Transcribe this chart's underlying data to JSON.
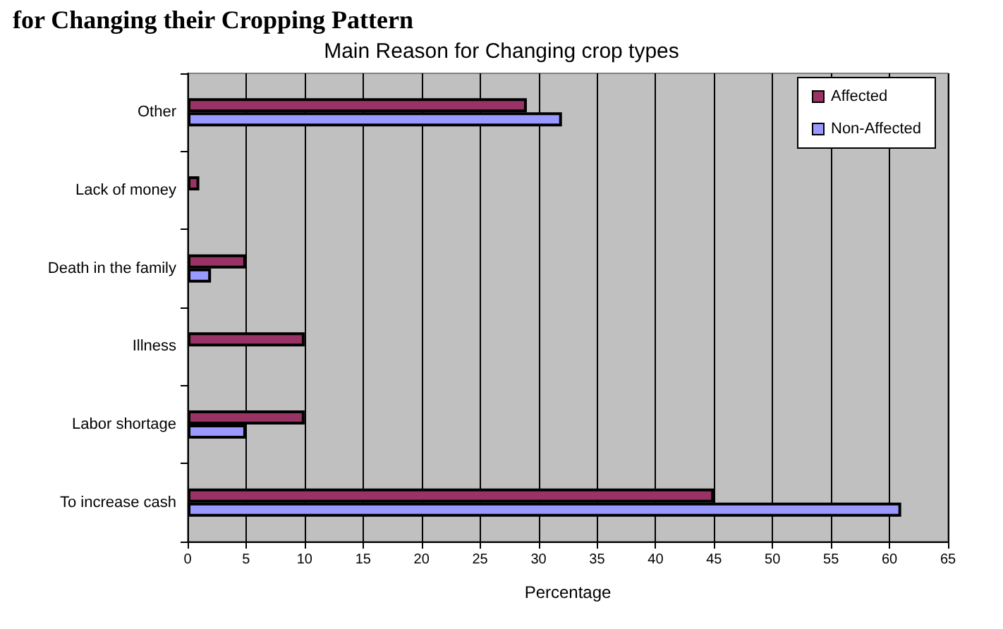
{
  "chart_data": {
    "type": "bar",
    "orientation": "horizontal",
    "title": "Main Reason for Changing crop types",
    "xlabel": "Percentage",
    "annotations": [
      "for Changing their Cropping Pattern"
    ],
    "categories": [
      "Other",
      "Lack of money",
      "Death in the family",
      "Illness",
      "Labor shortage",
      "To increase cash"
    ],
    "series": [
      {
        "name": "Affected",
        "color": "#993366",
        "values": [
          29,
          1,
          5,
          10,
          10,
          45
        ]
      },
      {
        "name": "Non-Affected",
        "color": "#9999ff",
        "values": [
          32,
          null,
          2,
          null,
          5,
          61
        ]
      }
    ],
    "xlim": [
      0,
      65
    ],
    "xticks": [
      0,
      5,
      10,
      15,
      20,
      25,
      30,
      35,
      40,
      45,
      50,
      55,
      60,
      65
    ],
    "grid": "x",
    "legend": "top right"
  }
}
